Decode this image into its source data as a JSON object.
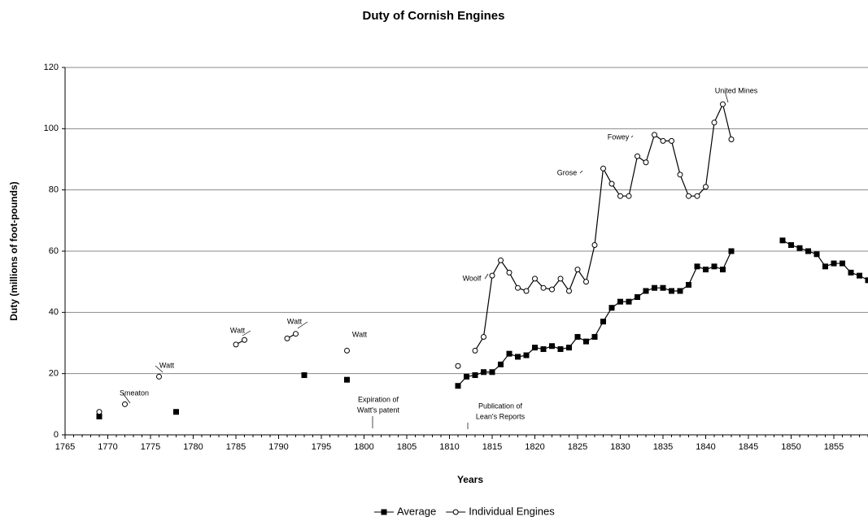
{
  "chart_data": {
    "type": "line",
    "title": "Duty of Cornish Engines",
    "xlabel": "Years",
    "ylabel": "Duty (millions of foot-pounds)",
    "xlim": [
      1765,
      1859
    ],
    "ylim": [
      0,
      120
    ],
    "xticks": [
      1765,
      1770,
      1775,
      1780,
      1785,
      1790,
      1795,
      1800,
      1805,
      1810,
      1815,
      1820,
      1825,
      1830,
      1835,
      1840,
      1845,
      1850,
      1855
    ],
    "yticks": [
      0,
      20,
      40,
      60,
      80,
      100,
      120
    ],
    "grid": true,
    "legend": "bottom",
    "series": [
      {
        "name": "Average",
        "color": "#000000",
        "marker": "square",
        "x": [
          1769,
          1770,
          1778,
          1779,
          1793,
          1794,
          1798,
          1799,
          1811,
          1812,
          1813,
          1814,
          1815,
          1816,
          1817,
          1818,
          1819,
          1820,
          1821,
          1822,
          1823,
          1824,
          1825,
          1826,
          1827,
          1828,
          1829,
          1830,
          1831,
          1832,
          1833,
          1834,
          1835,
          1836,
          1837,
          1838,
          1839,
          1840,
          1841,
          1842,
          1843,
          1844,
          1849,
          1850,
          1851,
          1852,
          1853,
          1854,
          1855,
          1856,
          1857,
          1858,
          1859
        ],
        "values": [
          6,
          null,
          7.5,
          null,
          19.5,
          null,
          18,
          null,
          16,
          19,
          19.5,
          20.5,
          20.5,
          23,
          26.5,
          25.5,
          26,
          28.5,
          28,
          29,
          28,
          28.5,
          32,
          30.5,
          32,
          37,
          41.5,
          43.5,
          43.5,
          45,
          47,
          48,
          48,
          47,
          47,
          49,
          55,
          54,
          55,
          54,
          60,
          null,
          63.5,
          62,
          61,
          60,
          59,
          55,
          56,
          56,
          53,
          52,
          50.5
        ]
      },
      {
        "name": "Individual Engines",
        "color": "#000000",
        "marker": "circle",
        "x": [
          1769,
          1770,
          1772,
          1773,
          1776,
          1777,
          1785,
          1786,
          1787,
          1791,
          1792,
          1793,
          1798,
          1799,
          1811,
          1812,
          1813,
          1814,
          1815,
          1816,
          1817,
          1818,
          1819,
          1820,
          1821,
          1822,
          1823,
          1824,
          1825,
          1826,
          1827,
          1828,
          1829,
          1830,
          1831,
          1832,
          1833,
          1834,
          1835,
          1836,
          1837,
          1838,
          1839,
          1840,
          1841,
          1842,
          1843
        ],
        "values": [
          7.5,
          null,
          10,
          null,
          19,
          null,
          29.5,
          31,
          null,
          31.5,
          33,
          null,
          27.5,
          null,
          22.5,
          null,
          27.5,
          32,
          52,
          57,
          53,
          48,
          47,
          51,
          48,
          47.5,
          51,
          47,
          54,
          50,
          62,
          87,
          82,
          78,
          78,
          91,
          89,
          98,
          96,
          96,
          85,
          78,
          78,
          81,
          102,
          108,
          96.5
        ]
      }
    ],
    "annotations": [
      {
        "lines": [
          "Smeaton"
        ]
      },
      {
        "lines": [
          "Watt"
        ]
      },
      {
        "lines": [
          "Watt"
        ]
      },
      {
        "lines": [
          "Watt"
        ]
      },
      {
        "lines": [
          "Watt"
        ]
      },
      {
        "lines": [
          "Woolf"
        ]
      },
      {
        "lines": [
          "Grose"
        ]
      },
      {
        "lines": [
          "Fowey"
        ]
      },
      {
        "lines": [
          "United Mines"
        ]
      },
      {
        "lines": [
          "Expiration of",
          "Watt's patent"
        ]
      },
      {
        "lines": [
          "Publication of",
          "Lean's Reports"
        ]
      }
    ]
  }
}
